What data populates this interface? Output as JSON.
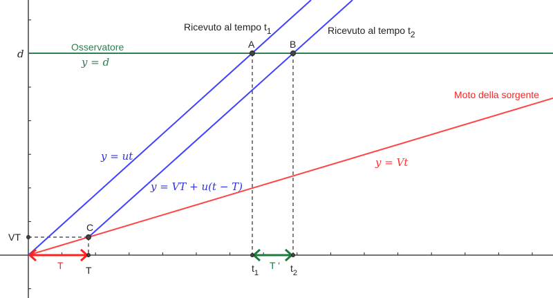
{
  "colors": {
    "observer": "#2e7d4f",
    "source": "#ff4444",
    "signal": "#4040ff",
    "axis": "#222222",
    "interval_T": "#ff2020",
    "interval_Tprime": "#1e7a3c"
  },
  "axis_labels": {
    "d": "d",
    "VT": "VT",
    "T": "T",
    "t1_base": "t",
    "t1_sub": "1",
    "t2_base": "t",
    "t2_sub": "2"
  },
  "lines": {
    "observer": {
      "name": "Osservatore",
      "equation": "y = d"
    },
    "signal1": {
      "equation": "y = ut"
    },
    "signal2": {
      "equation": "y = VT + u(t − T)"
    },
    "source": {
      "name": "Moto della sorgente",
      "equation": "y = Vt"
    }
  },
  "points": {
    "A": "A",
    "B": "B",
    "C": "C"
  },
  "annotations": {
    "received1_text": "Ricevuto al tempo t",
    "received1_sub": "1",
    "received2_text": "Ricevuto al tempo t",
    "received2_sub": "2"
  },
  "intervals": {
    "T": "T",
    "Tprime": "T '"
  }
}
